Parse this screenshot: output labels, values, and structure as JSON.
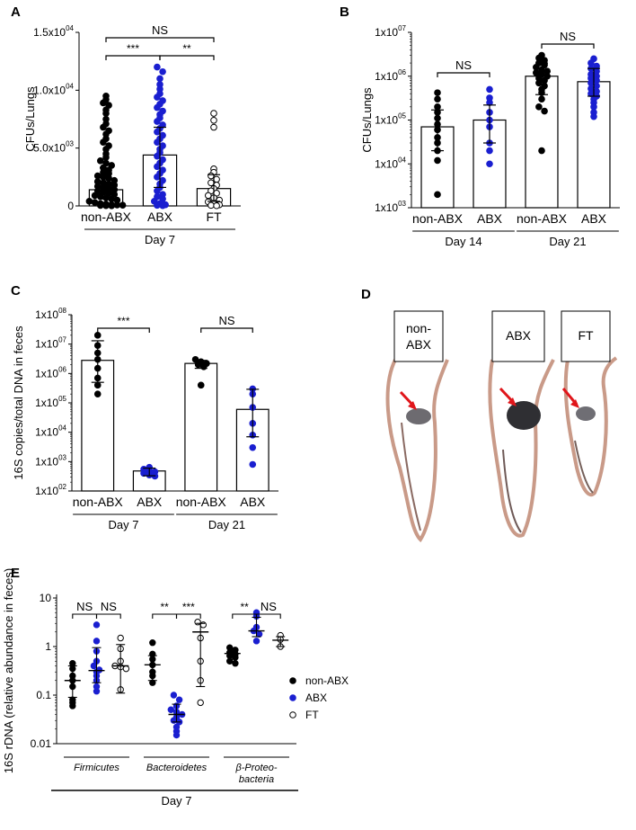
{
  "colors": {
    "black": "#000000",
    "blue": "#1a1fd0",
    "arrow": "#e0161b"
  },
  "chart_data": [
    {
      "panel": "A",
      "type": "scatter-bar",
      "scale": "linear",
      "ylim": [
        0,
        15000
      ],
      "ylabel": "CFUs/Lungs",
      "yticks": [
        {
          "v": 0,
          "t": "0"
        },
        {
          "v": 5000,
          "t": "5.0x10",
          "e": "03"
        },
        {
          "v": 10000,
          "t": "1.0x10",
          "e": "04"
        },
        {
          "v": 15000,
          "t": "1.5x10",
          "e": "04"
        }
      ],
      "categories": [
        "non-ABX",
        "ABX",
        "FT"
      ],
      "group_label": "Day 7",
      "series": [
        {
          "name": "non-ABX",
          "color": "black",
          "bar": 1400,
          "err": [
            600,
            3300
          ],
          "points": [
            9500,
            9200,
            8900,
            8700,
            8300,
            8000,
            7500,
            7100,
            6800,
            6500,
            6200,
            5800,
            5500,
            5200,
            4900,
            4500,
            4200,
            3900,
            3700,
            3500,
            3300,
            3100,
            2900,
            2800,
            2600,
            2500,
            2400,
            2200,
            2100,
            2000,
            1900,
            1800,
            1700,
            1600,
            1500,
            1400,
            1300,
            1200,
            1100,
            1000,
            900,
            800,
            700,
            600,
            500,
            400,
            300,
            200,
            150,
            100,
            80,
            60,
            40,
            20,
            10
          ]
        },
        {
          "name": "ABX",
          "color": "blue",
          "bar": 4400,
          "err": [
            1600,
            6800
          ],
          "points": [
            12000,
            11600,
            11000,
            10500,
            10100,
            9700,
            9400,
            9100,
            8800,
            8500,
            8200,
            7900,
            7600,
            7300,
            7000,
            6700,
            6400,
            6100,
            5800,
            5500,
            5200,
            4900,
            4600,
            4300,
            4000,
            3700,
            3400,
            3100,
            2800,
            2500,
            2200,
            1900,
            1600,
            1300,
            1000,
            800,
            600,
            400,
            200,
            100,
            50,
            20
          ]
        },
        {
          "name": "FT",
          "color": "open",
          "bar": 1500,
          "err": [
            400,
            2700
          ],
          "points": [
            8000,
            7400,
            6800,
            3200,
            2900,
            2600,
            2300,
            2000,
            1800,
            1500,
            1300,
            1100,
            900,
            700,
            500,
            350,
            200,
            100,
            50,
            20
          ]
        }
      ],
      "brackets": [
        {
          "a": 0,
          "b": 2,
          "label": "NS"
        },
        {
          "a": 0,
          "b": 1,
          "label": "***"
        },
        {
          "a": 1,
          "b": 2,
          "label": "**"
        }
      ]
    },
    {
      "panel": "B",
      "type": "scatter-bar",
      "scale": "log",
      "ylim": [
        3,
        7
      ],
      "ylabel": "CFUs/Lungs",
      "yticks": [
        {
          "v": 3,
          "t": "1x10",
          "e": "03"
        },
        {
          "v": 4,
          "t": "1x10",
          "e": "04"
        },
        {
          "v": 5,
          "t": "1x10",
          "e": "05"
        },
        {
          "v": 6,
          "t": "1x10",
          "e": "06"
        },
        {
          "v": 7,
          "t": "1x10",
          "e": "07"
        }
      ],
      "categories": [
        "non-ABX",
        "ABX",
        "non-ABX",
        "ABX"
      ],
      "groups": [
        {
          "label": "Day 14",
          "cats": [
            0,
            1
          ]
        },
        {
          "label": "Day 21",
          "cats": [
            2,
            3
          ]
        }
      ],
      "series": [
        {
          "name": "non-ABX",
          "color": "black",
          "bar": 70000,
          "err": [
            20000,
            170000
          ],
          "points": [
            420000,
            300000,
            200000,
            150000,
            110000,
            80000,
            60000,
            40000,
            30000,
            20000,
            12000,
            2000
          ]
        },
        {
          "name": "ABX",
          "color": "blue",
          "bar": 100000,
          "err": [
            30000,
            220000
          ],
          "points": [
            500000,
            320000,
            250000,
            150000,
            100000,
            70000,
            30000,
            20000,
            10000
          ]
        },
        {
          "name": "non-ABX",
          "color": "black",
          "bar": 1000000,
          "err": [
            380000,
            2000000
          ],
          "points": [
            3000000,
            2600000,
            2300000,
            2000000,
            1800000,
            1600000,
            1400000,
            1300000,
            1200000,
            1100000,
            1000000,
            900000,
            800000,
            700000,
            600000,
            500000,
            420000,
            300000,
            200000,
            160000,
            20000
          ]
        },
        {
          "name": "ABX",
          "color": "blue",
          "bar": 750000,
          "err": [
            350000,
            1500000
          ],
          "points": [
            2500000,
            2000000,
            1700000,
            1500000,
            1300000,
            1100000,
            1000000,
            900000,
            800000,
            700000,
            600000,
            520000,
            450000,
            400000,
            350000,
            300000,
            250000,
            200000,
            150000,
            120000
          ]
        }
      ],
      "brackets": [
        {
          "a": 0,
          "b": 1,
          "label": "NS"
        },
        {
          "a": 2,
          "b": 3,
          "label": "NS"
        }
      ]
    },
    {
      "panel": "C",
      "type": "scatter-bar",
      "scale": "log",
      "ylim": [
        2,
        8
      ],
      "ylabel": "16S copies/total DNA in feces",
      "yticks": [
        {
          "v": 2,
          "t": "1x10",
          "e": "02"
        },
        {
          "v": 3,
          "t": "1x10",
          "e": "03"
        },
        {
          "v": 4,
          "t": "1x10",
          "e": "04"
        },
        {
          "v": 5,
          "t": "1x10",
          "e": "05"
        },
        {
          "v": 6,
          "t": "1x10",
          "e": "06"
        },
        {
          "v": 7,
          "t": "1x10",
          "e": "07"
        },
        {
          "v": 8,
          "t": "1x10",
          "e": "08"
        }
      ],
      "categories": [
        "non-ABX",
        "ABX",
        "non-ABX",
        "ABX"
      ],
      "groups": [
        {
          "label": "Day 7",
          "cats": [
            0,
            1
          ]
        },
        {
          "label": "Day 21",
          "cats": [
            2,
            3
          ]
        }
      ],
      "series": [
        {
          "name": "non-ABX",
          "color": "black",
          "bar": 2800000,
          "err": [
            500000,
            13000000
          ],
          "points": [
            20000000,
            9000000,
            5000000,
            3000000,
            1500000,
            700000,
            400000,
            200000
          ]
        },
        {
          "name": "ABX",
          "color": "blue",
          "bar": 480,
          "err": [
            330,
            600
          ],
          "points": [
            640,
            550,
            500,
            450,
            400,
            350,
            320
          ]
        },
        {
          "name": "non-ABX",
          "color": "black",
          "bar": 2200000,
          "err": [
            1500000,
            2800000
          ],
          "points": [
            3000000,
            2500000,
            2200000,
            2000000,
            1700000,
            400000
          ]
        },
        {
          "name": "ABX",
          "color": "blue",
          "bar": 60000,
          "err": [
            7000,
            290000
          ],
          "points": [
            300000,
            200000,
            70000,
            20000,
            8000,
            3000,
            800
          ]
        }
      ],
      "brackets": [
        {
          "a": 0,
          "b": 1,
          "label": "***"
        },
        {
          "a": 2,
          "b": 3,
          "label": "NS"
        }
      ]
    },
    {
      "panel": "E",
      "type": "scatter-median",
      "scale": "log",
      "ylim": [
        -2,
        1
      ],
      "ylabel": "16S rDNA (relative abundance in feces)",
      "yticks": [
        {
          "v": -2,
          "t": "0.01"
        },
        {
          "v": -1,
          "t": "0.1"
        },
        {
          "v": 0,
          "t": "1"
        },
        {
          "v": 1,
          "t": "10"
        }
      ],
      "taxa": [
        "Firmicutes",
        "Bacteroidetes",
        "β-Proteo-",
        "bacteria"
      ],
      "group_label": "Day 7",
      "legend": [
        "non-ABX",
        "ABX",
        "FT"
      ],
      "groups": [
        {
          "points": [
            {
              "c": "black",
              "med": 0.2,
              "iqr": [
                0.09,
                0.4
              ],
              "v": [
                0.45,
                0.35,
                0.25,
                0.2,
                0.15,
                0.08,
                0.07,
                0.06
              ]
            },
            {
              "c": "blue",
              "med": 0.32,
              "iqr": [
                0.18,
                0.95
              ],
              "v": [
                2.8,
                1.3,
                0.8,
                0.5,
                0.4,
                0.33,
                0.3,
                0.25,
                0.2,
                0.15,
                0.12
              ]
            },
            {
              "c": "open",
              "med": 0.4,
              "iqr": [
                0.11,
                1.1
              ],
              "v": [
                1.5,
                0.9,
                0.5,
                0.4,
                0.38,
                0.35,
                0.13
              ]
            }
          ],
          "brackets": [
            {
              "a": 0,
              "b": 1,
              "label": "NS"
            },
            {
              "a": 1,
              "b": 2,
              "label": "NS"
            }
          ]
        },
        {
          "points": [
            {
              "c": "black",
              "med": 0.42,
              "iqr": [
                0.2,
                0.65
              ],
              "v": [
                1.2,
                0.7,
                0.55,
                0.42,
                0.3,
                0.25,
                0.18
              ]
            },
            {
              "c": "blue",
              "med": 0.04,
              "iqr": [
                0.028,
                0.065
              ],
              "v": [
                0.1,
                0.08,
                0.06,
                0.05,
                0.045,
                0.04,
                0.035,
                0.03,
                0.028,
                0.022,
                0.018,
                0.015
              ]
            },
            {
              "c": "open",
              "med": 2.0,
              "iqr": [
                0.15,
                3.0
              ],
              "v": [
                3.2,
                2.8,
                1.5,
                0.5,
                0.2,
                0.07
              ]
            }
          ],
          "brackets": [
            {
              "a": 0,
              "b": 1,
              "label": "**"
            },
            {
              "a": 1,
              "b": 2,
              "label": "***"
            }
          ]
        },
        {
          "points": [
            {
              "c": "black",
              "med": 0.72,
              "iqr": [
                0.55,
                0.85
              ],
              "v": [
                0.95,
                0.85,
                0.75,
                0.7,
                0.65,
                0.6,
                0.5,
                0.45
              ]
            },
            {
              "c": "blue",
              "med": 2.1,
              "iqr": [
                1.6,
                4.0
              ],
              "v": [
                5.0,
                4.2,
                2.5,
                2.1,
                1.8,
                1.3
              ]
            },
            {
              "c": "open",
              "med": 1.35,
              "iqr": [
                1.0,
                1.6
              ],
              "v": [
                1.7,
                1.4,
                1.0
              ]
            }
          ],
          "brackets": [
            {
              "a": 0,
              "b": 1,
              "label": "**"
            },
            {
              "a": 1,
              "b": 2,
              "label": "NS"
            }
          ]
        }
      ]
    }
  ],
  "panels": {
    "a": "A",
    "b": "B",
    "c": "C",
    "d": "D",
    "e": "E",
    "d_labels": [
      "non-",
      "ABX",
      "ABX",
      "FT"
    ]
  }
}
